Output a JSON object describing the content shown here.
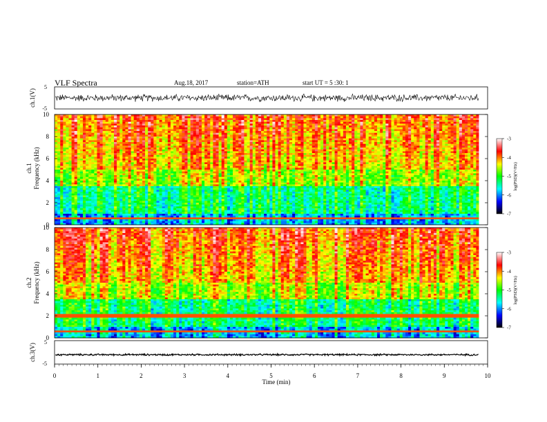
{
  "header": {
    "title": "VLF  Spectra",
    "date": "Aug.18, 2017",
    "station": "station=ATH",
    "start_ut": "start  UT  =    5  :30: 1"
  },
  "colors": {
    "spectrum": [
      "#000000",
      "#0000ff",
      "#00ffff",
      "#00ff00",
      "#ffff00",
      "#ff0000",
      "#ffffff"
    ],
    "trace": "#000000"
  },
  "chart_data": [
    {
      "type": "line",
      "name": "ch1-waveform",
      "ylabel": "ch.1(V)",
      "ylim": [
        -5,
        5
      ],
      "yticks": [
        "5",
        "-5"
      ],
      "x_range": [
        0,
        9.8
      ],
      "mean": 0,
      "amplitude": 1.3
    },
    {
      "type": "heatmap",
      "name": "ch1-spectrogram",
      "ylabel_channel": "ch.1",
      "ylabel": "Frequency  (kHz)",
      "ylim": [
        0,
        10
      ],
      "yticks": [
        "0",
        "2",
        "4",
        "6",
        "8",
        "10"
      ],
      "x_range": [
        0,
        9.8
      ],
      "colorbar": {
        "label": "log(PSD)(V²/Hz)",
        "range": [
          -7,
          -3
        ],
        "ticks": [
          "-3",
          "-4",
          "-5",
          "-6",
          "-7"
        ]
      }
    },
    {
      "type": "heatmap",
      "name": "ch2-spectrogram",
      "ylabel_channel": "ch.2",
      "ylabel": "Frequency  (kHz)",
      "ylim": [
        0,
        10
      ],
      "yticks": [
        "0",
        "2",
        "4",
        "6",
        "8",
        "10"
      ],
      "x_range": [
        0,
        9.8
      ],
      "colorbar": {
        "label": "log(PSD)(V²/Hz)",
        "range": [
          -7,
          -3
        ],
        "ticks": [
          "-3",
          "-4",
          "-5",
          "-6",
          "-7"
        ]
      }
    },
    {
      "type": "line",
      "name": "ch3-waveform",
      "ylabel": "ch.3(V)",
      "ylim": [
        -5,
        5
      ],
      "yticks": [
        "5",
        "-5"
      ],
      "x_range": [
        0,
        9.8
      ],
      "mean": -1,
      "amplitude": 0.3
    }
  ],
  "x_axis": {
    "label": "Time  (min)",
    "range": [
      0,
      10
    ],
    "ticks": [
      "0",
      "1",
      "2",
      "3",
      "4",
      "5",
      "6",
      "7",
      "8",
      "9",
      "10"
    ]
  }
}
